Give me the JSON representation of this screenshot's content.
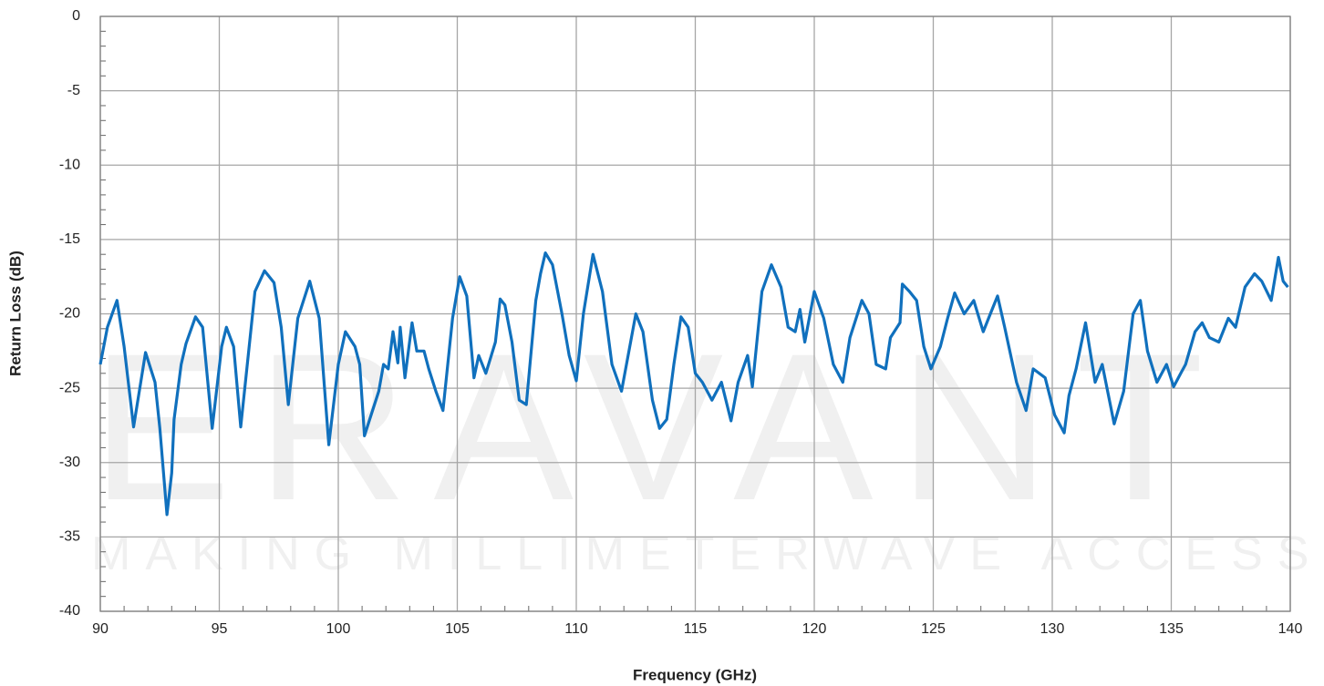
{
  "chart_data": {
    "type": "line",
    "watermark": "ERAVANT",
    "watermark_tagline": "MAKING MILLIMETERWAVE ACCESSIBLE",
    "x_label": "Frequency (GHz)",
    "y_label": "Return Loss (dB)",
    "xlim": [
      90,
      140
    ],
    "xticks": [
      90,
      95,
      100,
      105,
      110,
      115,
      120,
      125,
      130,
      135,
      140
    ],
    "ylim": [
      -40,
      0
    ],
    "yticks": [
      -40,
      -35,
      -30,
      -25,
      -20,
      -15,
      -10,
      -5,
      0
    ],
    "grid": true,
    "minor_ticks": true,
    "x": [
      90.0,
      90.3,
      90.7,
      91.0,
      91.4,
      91.9,
      92.3,
      92.5,
      92.8,
      93.0,
      93.1,
      93.4,
      93.6,
      94.0,
      94.3,
      94.7,
      95.1,
      95.3,
      95.6,
      95.9,
      96.5,
      96.9,
      97.3,
      97.6,
      97.9,
      98.3,
      98.8,
      99.2,
      99.6,
      100.0,
      100.3,
      100.7,
      100.9,
      101.1,
      101.3,
      101.7,
      101.9,
      102.1,
      102.3,
      102.5,
      102.6,
      102.8,
      103.1,
      103.3,
      103.6,
      103.8,
      104.1,
      104.4,
      104.8,
      105.1,
      105.4,
      105.7,
      105.9,
      106.2,
      106.6,
      106.8,
      107.0,
      107.3,
      107.6,
      107.9,
      108.3,
      108.5,
      108.7,
      109.0,
      109.4,
      109.7,
      110.0,
      110.3,
      110.7,
      111.1,
      111.5,
      111.9,
      112.5,
      112.8,
      113.2,
      113.5,
      113.8,
      114.1,
      114.4,
      114.7,
      115.0,
      115.3,
      115.7,
      116.1,
      116.5,
      116.8,
      117.2,
      117.4,
      117.8,
      118.2,
      118.6,
      118.9,
      119.2,
      119.4,
      119.6,
      120.0,
      120.4,
      120.8,
      121.2,
      121.5,
      122.0,
      122.3,
      122.6,
      123.0,
      123.2,
      123.6,
      123.7,
      124.0,
      124.3,
      124.6,
      124.9,
      125.3,
      125.6,
      125.9,
      126.3,
      126.7,
      127.1,
      127.4,
      127.7,
      128.0,
      128.5,
      128.9,
      129.2,
      129.7,
      130.1,
      130.5,
      130.7,
      131.0,
      131.4,
      131.8,
      132.1,
      132.6,
      133.0,
      133.4,
      133.7,
      134.0,
      134.4,
      134.8,
      135.1,
      135.4,
      135.6,
      136.0,
      136.3,
      136.6,
      137.0,
      137.4,
      137.7,
      138.1,
      138.5,
      138.8,
      139.2,
      139.5,
      139.7,
      139.9
    ],
    "series": [
      {
        "name": "Return Loss",
        "color": "#1070bd",
        "values": [
          -23.4,
          -20.9,
          -19.1,
          -22.2,
          -27.6,
          -22.6,
          -24.6,
          -27.7,
          -33.5,
          -30.7,
          -27.1,
          -23.4,
          -22.0,
          -20.2,
          -20.9,
          -27.7,
          -22.2,
          -20.9,
          -22.2,
          -27.6,
          -18.5,
          -17.1,
          -17.9,
          -20.9,
          -26.1,
          -20.3,
          -17.8,
          -20.3,
          -28.8,
          -23.4,
          -21.2,
          -22.2,
          -23.4,
          -28.2,
          -27.2,
          -25.2,
          -23.4,
          -23.7,
          -21.2,
          -23.3,
          -20.9,
          -24.3,
          -20.6,
          -22.5,
          -22.5,
          -23.7,
          -25.2,
          -26.5,
          -20.3,
          -17.5,
          -18.8,
          -24.3,
          -22.8,
          -24.0,
          -21.9,
          -19.0,
          -19.4,
          -21.9,
          -25.8,
          -26.1,
          -19.1,
          -17.3,
          -15.9,
          -16.7,
          -20.0,
          -22.8,
          -24.5,
          -20.0,
          -16.0,
          -18.5,
          -23.4,
          -25.2,
          -20.0,
          -21.2,
          -25.8,
          -27.7,
          -27.1,
          -23.4,
          -20.2,
          -20.9,
          -24.0,
          -24.6,
          -25.8,
          -24.6,
          -27.2,
          -24.6,
          -22.8,
          -24.9,
          -18.5,
          -16.7,
          -18.2,
          -20.9,
          -21.2,
          -19.7,
          -21.9,
          -18.5,
          -20.3,
          -23.4,
          -24.6,
          -21.6,
          -19.1,
          -20.0,
          -23.4,
          -23.7,
          -21.6,
          -20.6,
          -18.0,
          -18.5,
          -19.1,
          -22.2,
          -23.7,
          -22.2,
          -20.3,
          -18.6,
          -20.0,
          -19.1,
          -21.2,
          -20.0,
          -18.8,
          -20.9,
          -24.6,
          -26.5,
          -23.7,
          -24.3,
          -26.8,
          -28.0,
          -25.5,
          -23.7,
          -20.6,
          -24.6,
          -23.4,
          -27.4,
          -25.2,
          -20.0,
          -19.1,
          -22.5,
          -24.6,
          -23.4,
          -24.9,
          -24.0,
          -23.4,
          -21.2,
          -20.6,
          -21.6,
          -21.9,
          -20.3,
          -20.9,
          -18.2,
          -17.3,
          -17.8,
          -19.1,
          -16.2,
          -17.8,
          -18.2
        ]
      }
    ]
  }
}
